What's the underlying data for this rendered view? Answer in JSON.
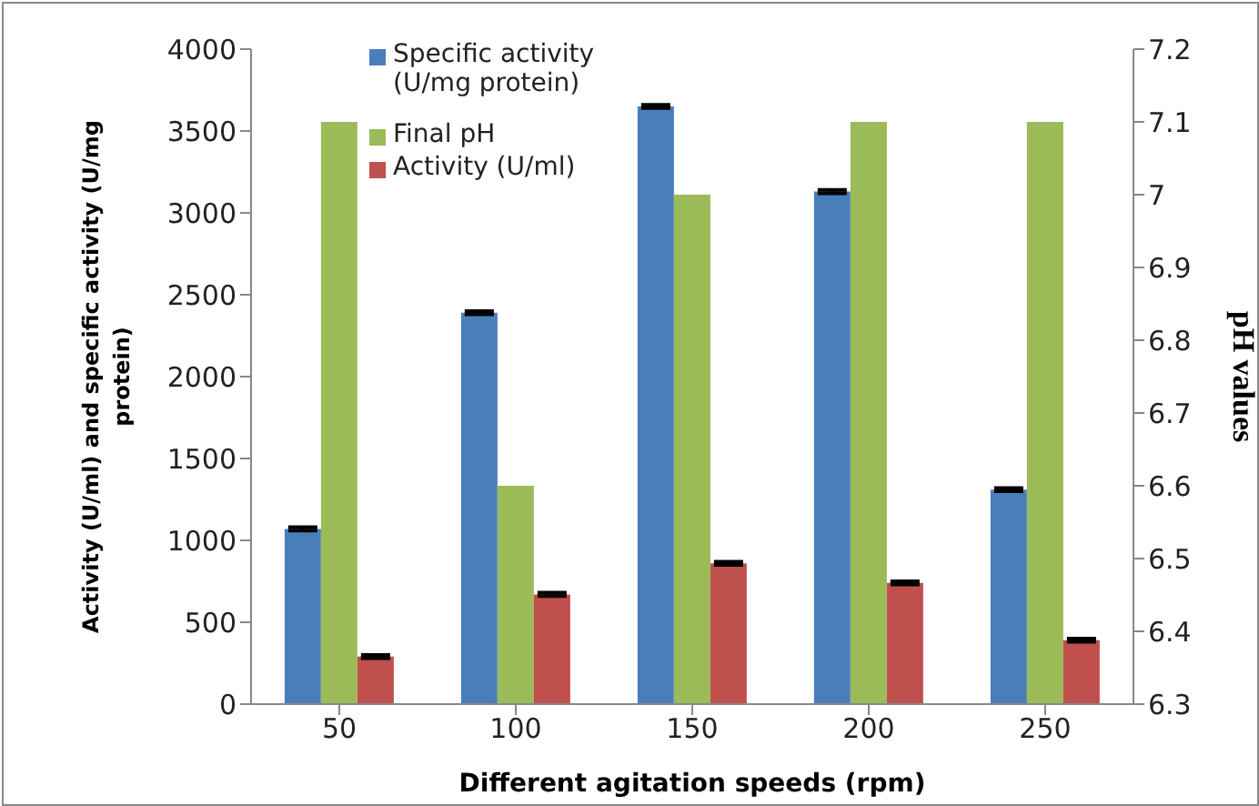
{
  "chart_data": {
    "type": "bar",
    "xlabel": "Different agitation speeds (rpm)",
    "ylabel": "Activity (U/ml) and specific activity (U/mg protein)",
    "y2label": "pH values",
    "categories": [
      "50",
      "100",
      "150",
      "200",
      "250"
    ],
    "series": [
      {
        "name": "Specific activity (U/mg protein)",
        "color": "#4a7ebb",
        "values": [
          1070,
          2390,
          3650,
          3130,
          1310
        ],
        "errors": [
          10,
          10,
          10,
          10,
          10
        ]
      },
      {
        "name": "Final pH",
        "color": "#9bbb59",
        "axis": "y2",
        "values": [
          7.1,
          6.6,
          7.0,
          7.1,
          7.1
        ]
      },
      {
        "name": "Activity (U/ml)",
        "color": "#c0504d",
        "values": [
          290,
          670,
          860,
          740,
          390
        ],
        "errors": [
          10,
          10,
          10,
          10,
          10
        ]
      }
    ],
    "ylim": [
      0,
      4000
    ],
    "yticks": [
      0,
      500,
      1000,
      1500,
      2000,
      2500,
      3000,
      3500,
      4000
    ],
    "y2lim": [
      6.3,
      7.2
    ],
    "y2ticks": [
      6.3,
      6.4,
      6.5,
      6.6,
      6.7,
      6.8,
      6.9,
      7,
      7.1,
      7.2
    ],
    "grid": false,
    "legend": "top left"
  }
}
